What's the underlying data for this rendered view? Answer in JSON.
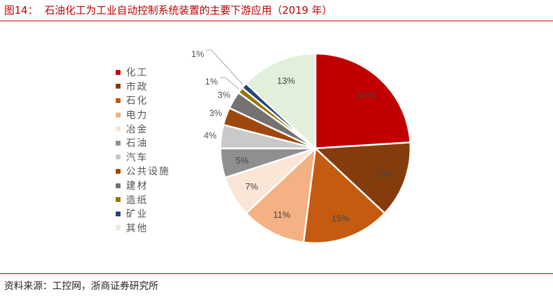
{
  "title": "图14：  石油化工为工业自动控制系统装置的主要下游应用（2019 年）",
  "source": "资料来源：工控网，浙商证券研究所",
  "chart_data": {
    "type": "pie",
    "title": "",
    "legend_position": "left",
    "start": "12 o'clock, clockwise",
    "categories": [
      "化工",
      "市政",
      "石化",
      "电力",
      "冶金",
      "石油",
      "汽车",
      "公共设施",
      "建材",
      "造纸",
      "矿业",
      "其他"
    ],
    "values": [
      24,
      13,
      15,
      11,
      7,
      5,
      4,
      3,
      3,
      1,
      1,
      13
    ],
    "labels": [
      "24%",
      "13%",
      "15%",
      "11%",
      "7%",
      "5%",
      "4%",
      "3%",
      "3%",
      "1%",
      "1%",
      "13%"
    ],
    "colors": [
      "#C00000",
      "#843C0C",
      "#C55A11",
      "#F4B183",
      "#FBE5D6",
      "#8F8F8F",
      "#C9C9C9",
      "#9E480E",
      "#767171",
      "#997300",
      "#264478",
      "#E2EFDA"
    ]
  }
}
